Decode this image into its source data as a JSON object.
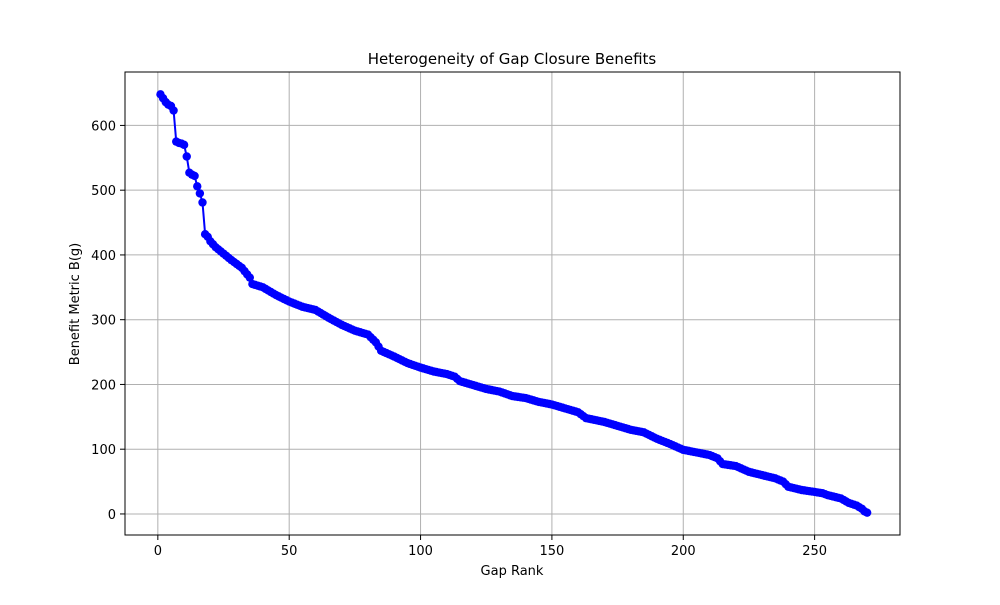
{
  "chart_data": {
    "type": "line",
    "title": "Heterogeneity of Gap Closure Benefits",
    "xlabel": "Gap Rank",
    "ylabel": "Benefit Metric B(g)",
    "xlim": [
      -12.5,
      282.5
    ],
    "ylim": [
      -32.5,
      682.5
    ],
    "xticks": [
      0,
      50,
      100,
      150,
      200,
      250
    ],
    "yticks": [
      0,
      100,
      200,
      300,
      400,
      500,
      600
    ],
    "grid": true,
    "marker": "circle",
    "series_color": "#0000ff",
    "anchors": [
      [
        1,
        648
      ],
      [
        2,
        642
      ],
      [
        3,
        636
      ],
      [
        4,
        632
      ],
      [
        5,
        630
      ],
      [
        6,
        623
      ],
      [
        7,
        575
      ],
      [
        8,
        573
      ],
      [
        9,
        572
      ],
      [
        10,
        570
      ],
      [
        11,
        552
      ],
      [
        12,
        527
      ],
      [
        13,
        524
      ],
      [
        14,
        522
      ],
      [
        15,
        506
      ],
      [
        16,
        495
      ],
      [
        17,
        481
      ],
      [
        18,
        432
      ],
      [
        19,
        428
      ],
      [
        20,
        421
      ],
      [
        22,
        412
      ],
      [
        25,
        402
      ],
      [
        28,
        392
      ],
      [
        32,
        380
      ],
      [
        35,
        365
      ],
      [
        36,
        355
      ],
      [
        40,
        350
      ],
      [
        45,
        338
      ],
      [
        50,
        328
      ],
      [
        55,
        320
      ],
      [
        60,
        315
      ],
      [
        65,
        303
      ],
      [
        70,
        292
      ],
      [
        75,
        283
      ],
      [
        80,
        277
      ],
      [
        83,
        265
      ],
      [
        85,
        252
      ],
      [
        90,
        243
      ],
      [
        95,
        233
      ],
      [
        100,
        226
      ],
      [
        105,
        220
      ],
      [
        110,
        216
      ],
      [
        113,
        212
      ],
      [
        115,
        205
      ],
      [
        120,
        199
      ],
      [
        125,
        193
      ],
      [
        130,
        189
      ],
      [
        135,
        182
      ],
      [
        140,
        179
      ],
      [
        145,
        173
      ],
      [
        150,
        169
      ],
      [
        155,
        163
      ],
      [
        160,
        157
      ],
      [
        163,
        148
      ],
      [
        170,
        142
      ],
      [
        175,
        136
      ],
      [
        180,
        130
      ],
      [
        185,
        126
      ],
      [
        190,
        116
      ],
      [
        195,
        108
      ],
      [
        200,
        99
      ],
      [
        205,
        95
      ],
      [
        210,
        91
      ],
      [
        213,
        86
      ],
      [
        215,
        77
      ],
      [
        220,
        74
      ],
      [
        225,
        65
      ],
      [
        230,
        60
      ],
      [
        235,
        55
      ],
      [
        238,
        50
      ],
      [
        240,
        42
      ],
      [
        245,
        37
      ],
      [
        250,
        34
      ],
      [
        253,
        32
      ],
      [
        255,
        29
      ],
      [
        260,
        24
      ],
      [
        263,
        17
      ],
      [
        266,
        13
      ],
      [
        268,
        8
      ],
      [
        269,
        4
      ],
      [
        270,
        2
      ]
    ]
  }
}
